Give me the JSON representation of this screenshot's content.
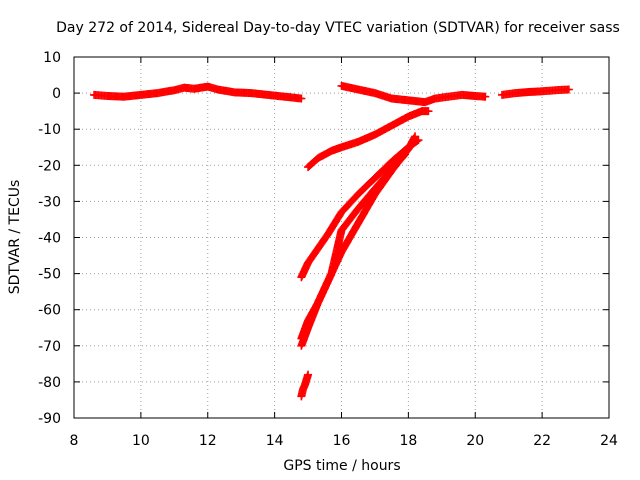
{
  "chart_data": {
    "type": "scatter",
    "title": "Day 272 of 2014, Sidereal Day-to-day VTEC variation (SDTVAR) for receiver sass",
    "xlabel": "GPS time / hours",
    "ylabel": "SDTVAR / TECUs",
    "xlim": [
      8,
      24
    ],
    "ylim": [
      -90,
      10
    ],
    "xticks": [
      8,
      10,
      12,
      14,
      16,
      18,
      20,
      22,
      24
    ],
    "yticks": [
      10,
      0,
      -10,
      -20,
      -30,
      -40,
      -50,
      -60,
      -70,
      -80,
      -90
    ],
    "grid": true,
    "marker": "plus",
    "color": "#ff0000",
    "segments": [
      {
        "x": [
          8.6,
          9.0,
          9.5,
          10.0,
          10.5,
          11.0,
          11.3,
          11.6,
          12.0,
          12.3,
          12.8,
          13.3,
          13.8,
          14.3,
          14.8
        ],
        "y": [
          -0.5,
          -0.8,
          -1.0,
          -0.5,
          0.0,
          0.8,
          1.5,
          1.2,
          1.8,
          1.0,
          0.2,
          0.0,
          -0.5,
          -1.0,
          -1.5
        ]
      },
      {
        "x": [
          16.0,
          16.5,
          17.0,
          17.5,
          18.0,
          18.5,
          18.8,
          19.2,
          19.6,
          20.0,
          20.3
        ],
        "y": [
          2.0,
          1.0,
          0.0,
          -1.5,
          -2.0,
          -2.5,
          -1.5,
          -1.0,
          -0.5,
          -0.8,
          -1.0
        ]
      },
      {
        "x": [
          20.8,
          21.2,
          21.6,
          22.0,
          22.4,
          22.8
        ],
        "y": [
          -0.5,
          0.0,
          0.3,
          0.5,
          0.8,
          1.0
        ]
      },
      {
        "x": [
          15.0,
          15.3,
          15.7,
          16.0,
          16.5,
          17.0,
          17.5,
          18.0,
          18.4,
          18.6
        ],
        "y": [
          -20.5,
          -18.0,
          -16.0,
          -15.0,
          -13.5,
          -11.5,
          -9.0,
          -6.5,
          -5.0,
          -5.0
        ]
      },
      {
        "x": [
          14.8,
          15.0,
          15.3,
          15.6,
          16.0,
          16.5,
          17.0,
          17.5,
          18.0,
          18.3
        ],
        "y": [
          -51.0,
          -47.0,
          -43.0,
          -39.0,
          -33.0,
          -28.0,
          -23.5,
          -19.0,
          -15.0,
          -13.0
        ]
      },
      {
        "x": [
          14.8,
          15.0,
          15.3,
          15.7,
          16.0,
          16.5,
          17.0,
          17.5,
          18.0,
          18.2
        ],
        "y": [
          -70.0,
          -65.0,
          -58.0,
          -50.0,
          -44.0,
          -36.0,
          -28.0,
          -21.5,
          -15.5,
          -12.0
        ]
      },
      {
        "x": [
          14.8,
          15.0,
          15.3,
          15.7,
          16.0,
          16.5,
          17.0,
          17.5,
          17.9
        ],
        "y": [
          -68.0,
          -63.0,
          -58.0,
          -50.0,
          -38.0,
          -32.0,
          -26.5,
          -21.0,
          -17.0
        ]
      },
      {
        "x": [
          14.8,
          14.85,
          14.9,
          14.95,
          15.0
        ],
        "y": [
          -84.0,
          -82.0,
          -81.0,
          -79.5,
          -78.0
        ]
      }
    ]
  }
}
